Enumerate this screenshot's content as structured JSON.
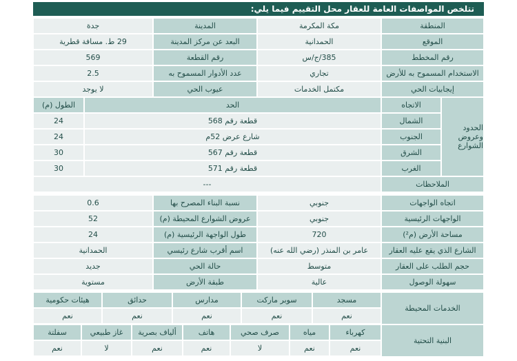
{
  "title": "تتلخص المواصفات العامة للعقار محل التقييم فيما يلي:",
  "general": [
    [
      "المنطقة",
      "مكة المكرمة",
      "المدينة",
      "جدة"
    ],
    [
      "الموقع",
      "الحمدانية",
      "البعد عن مركز المدينة",
      "29 ط. مسافة قطرية"
    ],
    [
      "رقم المخطط",
      "385/ج/س",
      "رقم القطعة",
      "569"
    ],
    [
      "الاستخدام المسموح به للأرض",
      "تجاري",
      "عدد الأدوار المسموح به",
      "2.5"
    ],
    [
      "إيجابيات الحي",
      "مكتمل الخدمات",
      "عيوب الحي",
      "لا يوجد"
    ]
  ],
  "boundaries": {
    "label": "الحدود وعروض الشوارع",
    "headers": [
      "الاتجاه",
      "الحد",
      "الطول (م)"
    ],
    "rows": [
      [
        "الشمال",
        "قطعة رقم 568",
        "24"
      ],
      [
        "الجنوب",
        "شارع عرض 52م",
        "24"
      ],
      [
        "الشرق",
        "قطعة رقم 567",
        "30"
      ],
      [
        "الغرب",
        "قطعة رقم 571",
        "30"
      ]
    ]
  },
  "notes": {
    "label": "الملاحظات",
    "value": "---"
  },
  "details": [
    [
      "اتجاه الواجهات",
      "جنوبي",
      "نسبة البناء المصرح بها",
      "0.6"
    ],
    [
      "الواجهات الرئيسية",
      "جنوبي",
      "عروض الشوارع المحيطة (م)",
      "52"
    ],
    [
      "مساحة الأرض (م²)",
      "720",
      "طول الواجهة الرئيسية (م)",
      "24"
    ],
    [
      "الشارع الذي يقع عليه العقار",
      "عامر بن المنذر (رضي الله عنه)",
      "اسم أقرب شارع رئيسي",
      "الحمدانية"
    ],
    [
      "حجم الطلب على العقار",
      "متوسط",
      "حالة الحي",
      "جديد"
    ],
    [
      "سهولة الوصول",
      "عالية",
      "طبقة الأرض",
      "مستوية"
    ]
  ],
  "services": {
    "label": "الخدمات المحيطة",
    "items": [
      "مسجد",
      "سوبر ماركت",
      "مدارس",
      "حدائق",
      "هيئات حكومية"
    ],
    "values": [
      "نعم",
      "نعم",
      "نعم",
      "نعم",
      "نعم"
    ]
  },
  "infrastructure": {
    "label": "البنية التحتية",
    "items": [
      "كهرباء",
      "مياه",
      "صرف صحي",
      "هاتف",
      "ألياف بصرية",
      "غاز طبيعي",
      "سفلتة"
    ],
    "values": [
      "نعم",
      "نعم",
      "لا",
      "نعم",
      "نعم",
      "لا",
      "نعم"
    ]
  }
}
